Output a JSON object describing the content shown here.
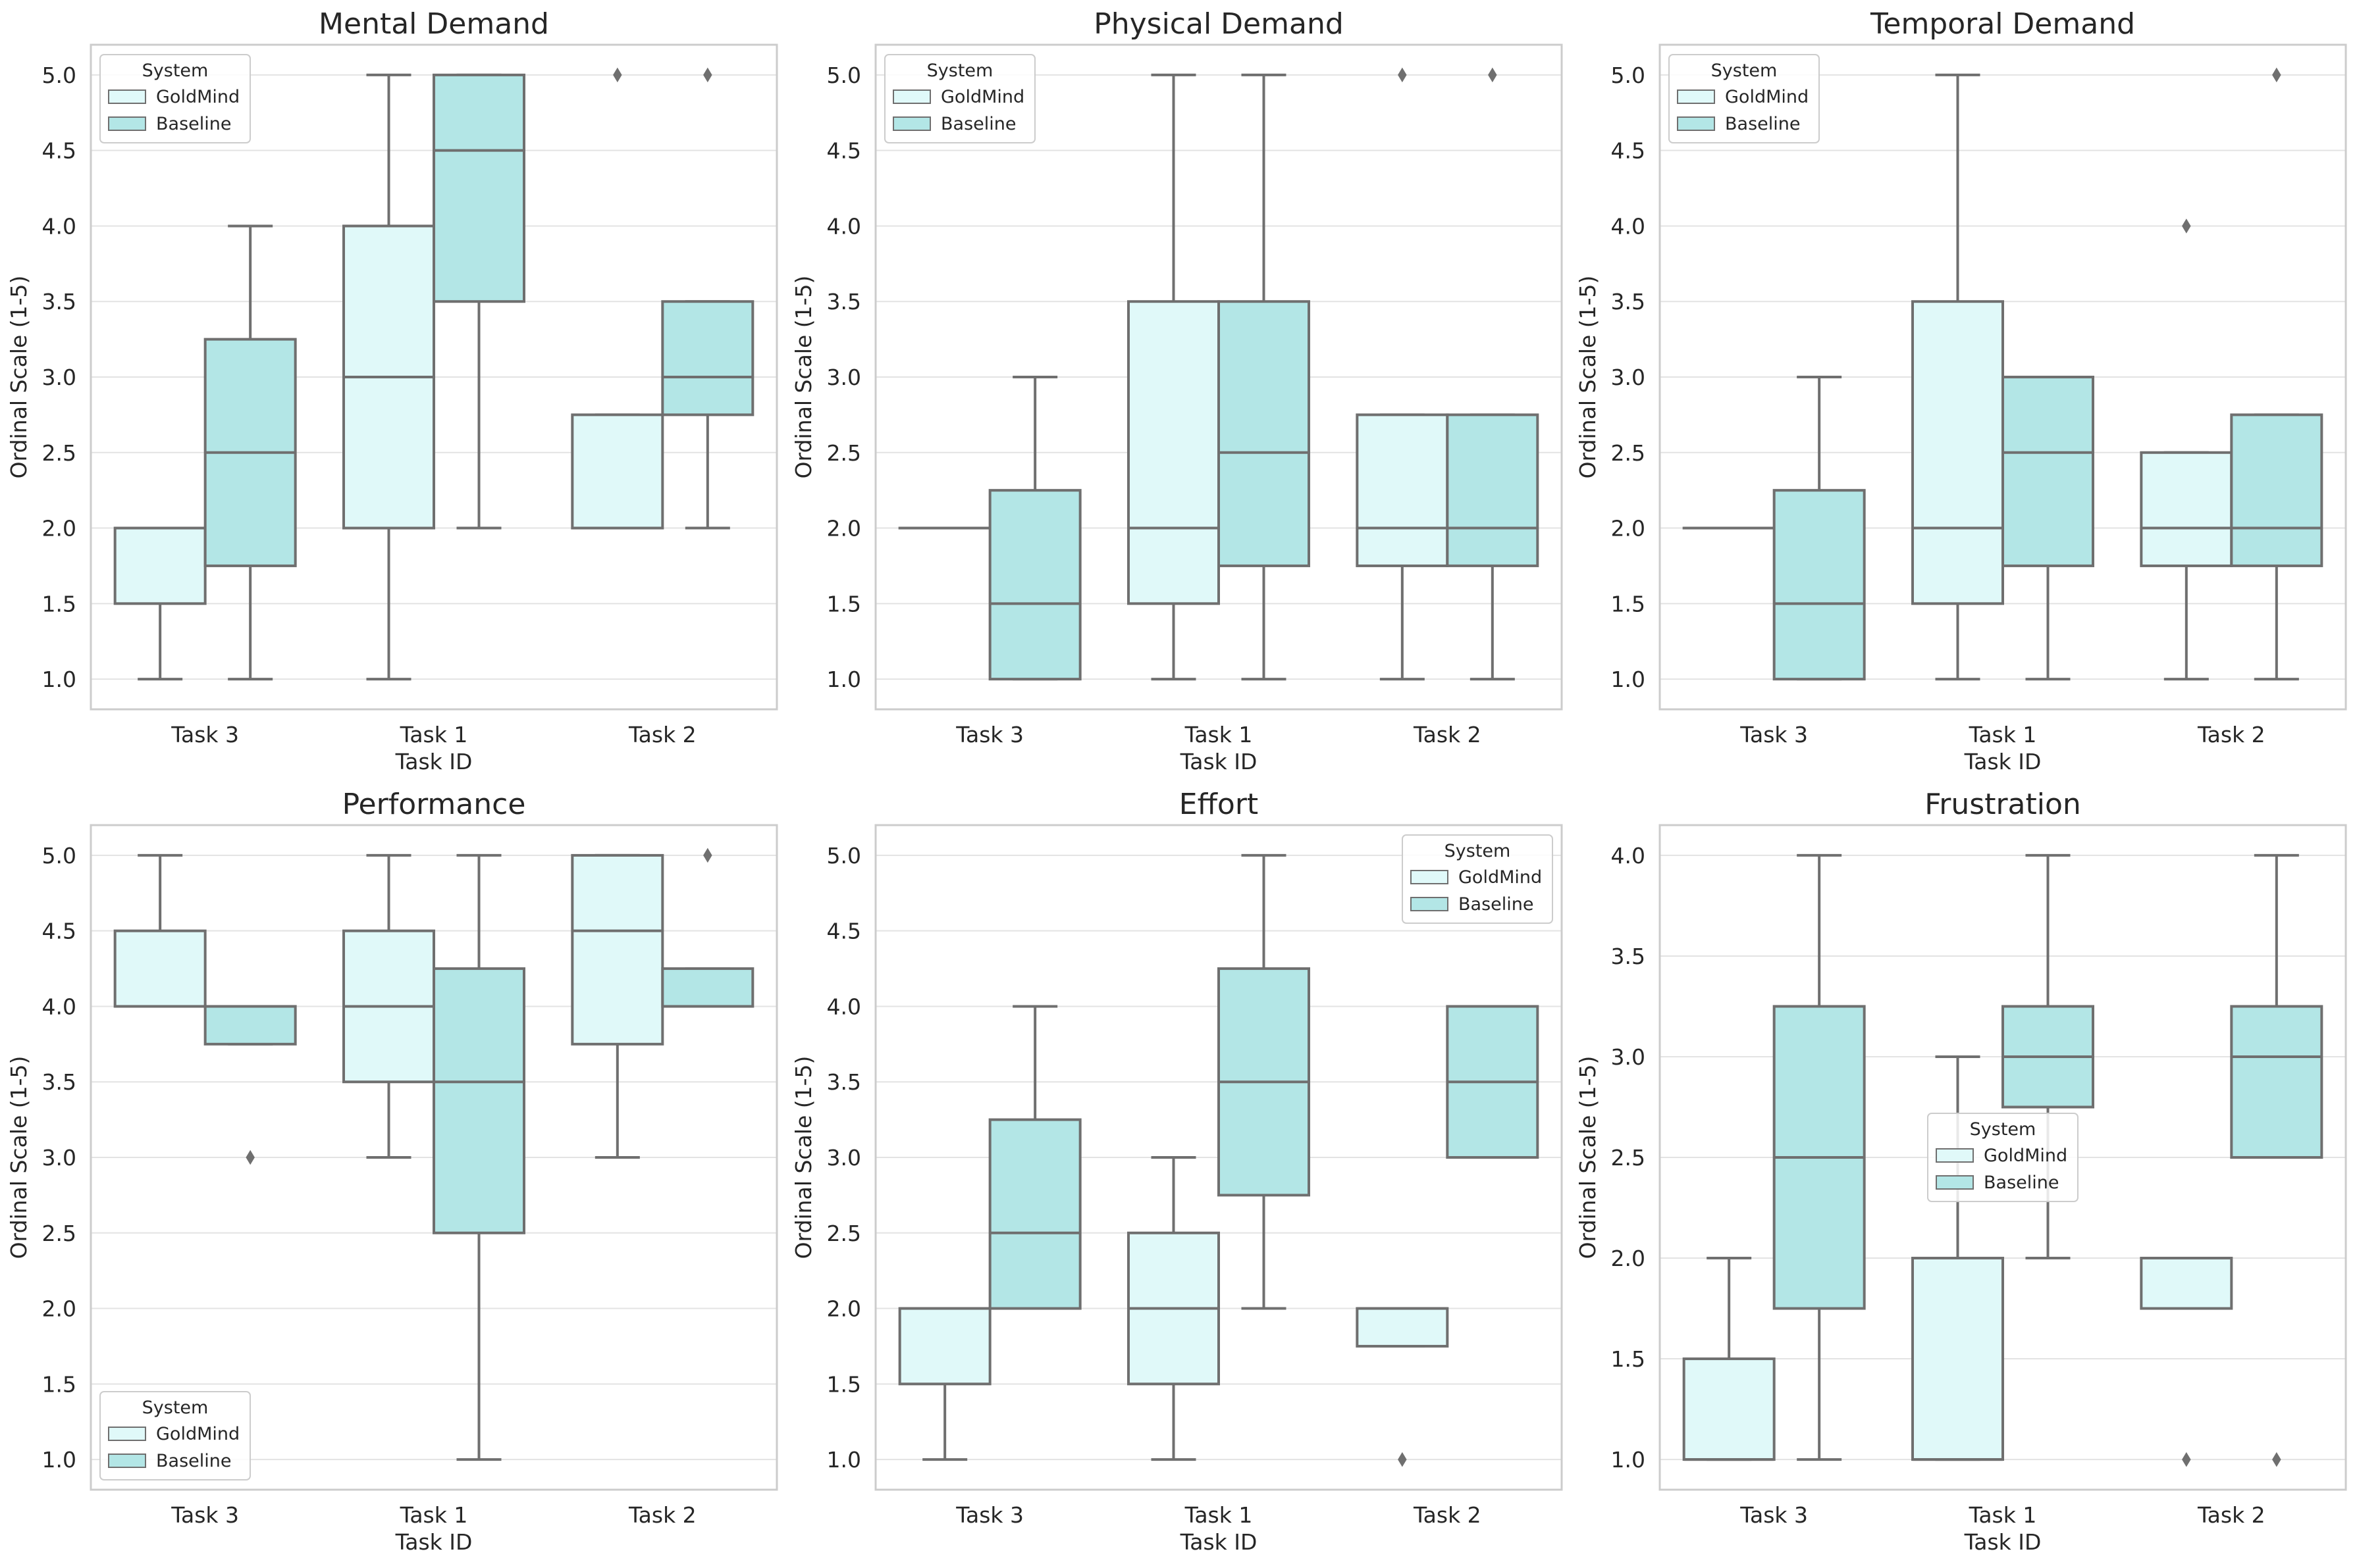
{
  "colors": {
    "goldmind": "#e0f9f9",
    "baseline": "#b3e6e6",
    "line": "#6f6f6f",
    "grid": "#e3e3e3",
    "spine": "#cccccc",
    "text": "#262626",
    "legend_border": "#cccccc"
  },
  "chart_data": [
    {
      "type": "box",
      "title": "Mental Demand",
      "xlabel": "Task ID",
      "ylabel": "Ordinal Scale (1-5)",
      "ylim": [
        0.8,
        5.2
      ],
      "yticks": [
        "1.0",
        "1.5",
        "2.0",
        "2.5",
        "3.0",
        "3.5",
        "4.0",
        "4.5",
        "5.0"
      ],
      "categories": [
        "Task 3",
        "Task 1",
        "Task 2"
      ],
      "legend": {
        "title": "System",
        "entries": [
          "GoldMind",
          "Baseline"
        ],
        "position": "upper-left"
      },
      "series": [
        {
          "name": "GoldMind",
          "boxes": [
            {
              "whislo": 1.0,
              "q1": 1.5,
              "med": 2.0,
              "q3": 2.0,
              "whishi": 2.0,
              "fliers": []
            },
            {
              "whislo": 1.0,
              "q1": 2.0,
              "med": 3.0,
              "q3": 4.0,
              "whishi": 5.0,
              "fliers": []
            },
            {
              "whislo": 2.0,
              "q1": 2.0,
              "med": 2.0,
              "q3": 2.75,
              "whishi": 2.75,
              "fliers": [
                5.0
              ]
            }
          ]
        },
        {
          "name": "Baseline",
          "boxes": [
            {
              "whislo": 1.0,
              "q1": 1.75,
              "med": 2.5,
              "q3": 3.25,
              "whishi": 4.0,
              "fliers": []
            },
            {
              "whislo": 2.0,
              "q1": 3.5,
              "med": 4.5,
              "q3": 5.0,
              "whishi": 5.0,
              "fliers": []
            },
            {
              "whislo": 2.0,
              "q1": 2.75,
              "med": 3.0,
              "q3": 3.5,
              "whishi": 3.5,
              "fliers": [
                5.0
              ]
            }
          ]
        }
      ]
    },
    {
      "type": "box",
      "title": "Physical Demand",
      "xlabel": "Task ID",
      "ylabel": "Ordinal Scale (1-5)",
      "ylim": [
        0.8,
        5.2
      ],
      "yticks": [
        "1.0",
        "1.5",
        "2.0",
        "2.5",
        "3.0",
        "3.5",
        "4.0",
        "4.5",
        "5.0"
      ],
      "categories": [
        "Task 3",
        "Task 1",
        "Task 2"
      ],
      "legend": {
        "title": "System",
        "entries": [
          "GoldMind",
          "Baseline"
        ],
        "position": "upper-left"
      },
      "series": [
        {
          "name": "GoldMind",
          "boxes": [
            {
              "whislo": 2.0,
              "q1": 2.0,
              "med": 2.0,
              "q3": 2.0,
              "whishi": 2.0,
              "fliers": []
            },
            {
              "whislo": 1.0,
              "q1": 1.5,
              "med": 2.0,
              "q3": 3.5,
              "whishi": 5.0,
              "fliers": []
            },
            {
              "whislo": 1.0,
              "q1": 1.75,
              "med": 2.0,
              "q3": 2.75,
              "whishi": 2.75,
              "fliers": [
                5.0
              ]
            }
          ]
        },
        {
          "name": "Baseline",
          "boxes": [
            {
              "whislo": 1.0,
              "q1": 1.0,
              "med": 1.5,
              "q3": 2.25,
              "whishi": 3.0,
              "fliers": []
            },
            {
              "whislo": 1.0,
              "q1": 1.75,
              "med": 2.5,
              "q3": 3.5,
              "whishi": 5.0,
              "fliers": []
            },
            {
              "whislo": 1.0,
              "q1": 1.75,
              "med": 2.0,
              "q3": 2.75,
              "whishi": 2.75,
              "fliers": [
                5.0
              ]
            }
          ]
        }
      ]
    },
    {
      "type": "box",
      "title": "Temporal Demand",
      "xlabel": "Task ID",
      "ylabel": "Ordinal Scale (1-5)",
      "ylim": [
        0.8,
        5.2
      ],
      "yticks": [
        "1.0",
        "1.5",
        "2.0",
        "2.5",
        "3.0",
        "3.5",
        "4.0",
        "4.5",
        "5.0"
      ],
      "categories": [
        "Task 3",
        "Task 1",
        "Task 2"
      ],
      "legend": {
        "title": "System",
        "entries": [
          "GoldMind",
          "Baseline"
        ],
        "position": "upper-left"
      },
      "series": [
        {
          "name": "GoldMind",
          "boxes": [
            {
              "whislo": 2.0,
              "q1": 2.0,
              "med": 2.0,
              "q3": 2.0,
              "whishi": 2.0,
              "fliers": []
            },
            {
              "whislo": 1.0,
              "q1": 1.5,
              "med": 2.0,
              "q3": 3.5,
              "whishi": 5.0,
              "fliers": []
            },
            {
              "whislo": 1.0,
              "q1": 1.75,
              "med": 2.0,
              "q3": 2.5,
              "whishi": 2.5,
              "fliers": [
                4.0
              ]
            }
          ]
        },
        {
          "name": "Baseline",
          "boxes": [
            {
              "whislo": 1.0,
              "q1": 1.0,
              "med": 1.5,
              "q3": 2.25,
              "whishi": 3.0,
              "fliers": []
            },
            {
              "whislo": 1.0,
              "q1": 1.75,
              "med": 2.5,
              "q3": 3.0,
              "whishi": 3.0,
              "fliers": []
            },
            {
              "whislo": 1.0,
              "q1": 1.75,
              "med": 2.0,
              "q3": 2.75,
              "whishi": 2.75,
              "fliers": [
                5.0
              ]
            }
          ]
        }
      ]
    },
    {
      "type": "box",
      "title": "Performance",
      "xlabel": "Task ID",
      "ylabel": "Ordinal Scale (1-5)",
      "ylim": [
        0.8,
        5.2
      ],
      "yticks": [
        "1.0",
        "1.5",
        "2.0",
        "2.5",
        "3.0",
        "3.5",
        "4.0",
        "4.5",
        "5.0"
      ],
      "categories": [
        "Task 3",
        "Task 1",
        "Task 2"
      ],
      "legend": {
        "title": "System",
        "entries": [
          "GoldMind",
          "Baseline"
        ],
        "position": "lower-left"
      },
      "series": [
        {
          "name": "GoldMind",
          "boxes": [
            {
              "whislo": 4.0,
              "q1": 4.0,
              "med": 4.0,
              "q3": 4.5,
              "whishi": 5.0,
              "fliers": []
            },
            {
              "whislo": 3.0,
              "q1": 3.5,
              "med": 4.0,
              "q3": 4.5,
              "whishi": 5.0,
              "fliers": []
            },
            {
              "whislo": 3.0,
              "q1": 3.75,
              "med": 4.5,
              "q3": 5.0,
              "whishi": 5.0,
              "fliers": []
            }
          ]
        },
        {
          "name": "Baseline",
          "boxes": [
            {
              "whislo": 3.75,
              "q1": 3.75,
              "med": 4.0,
              "q3": 4.0,
              "whishi": 4.0,
              "fliers": [
                3.0
              ]
            },
            {
              "whislo": 1.0,
              "q1": 2.5,
              "med": 3.5,
              "q3": 4.25,
              "whishi": 5.0,
              "fliers": []
            },
            {
              "whislo": 4.0,
              "q1": 4.0,
              "med": 4.0,
              "q3": 4.25,
              "whishi": 4.25,
              "fliers": [
                5.0
              ]
            }
          ]
        }
      ]
    },
    {
      "type": "box",
      "title": "Effort",
      "xlabel": "Task ID",
      "ylabel": "Ordinal Scale (1-5)",
      "ylim": [
        0.8,
        5.2
      ],
      "yticks": [
        "1.0",
        "1.5",
        "2.0",
        "2.5",
        "3.0",
        "3.5",
        "4.0",
        "4.5",
        "5.0"
      ],
      "categories": [
        "Task 3",
        "Task 1",
        "Task 2"
      ],
      "legend": {
        "title": "System",
        "entries": [
          "GoldMind",
          "Baseline"
        ],
        "position": "upper-right"
      },
      "series": [
        {
          "name": "GoldMind",
          "boxes": [
            {
              "whislo": 1.0,
              "q1": 1.5,
              "med": 2.0,
              "q3": 2.0,
              "whishi": 2.0,
              "fliers": []
            },
            {
              "whislo": 1.0,
              "q1": 1.5,
              "med": 2.0,
              "q3": 2.5,
              "whishi": 3.0,
              "fliers": []
            },
            {
              "whislo": 1.75,
              "q1": 1.75,
              "med": 2.0,
              "q3": 2.0,
              "whishi": 2.0,
              "fliers": [
                1.0
              ]
            }
          ]
        },
        {
          "name": "Baseline",
          "boxes": [
            {
              "whislo": 2.0,
              "q1": 2.0,
              "med": 2.5,
              "q3": 3.25,
              "whishi": 4.0,
              "fliers": []
            },
            {
              "whislo": 2.0,
              "q1": 2.75,
              "med": 3.5,
              "q3": 4.25,
              "whishi": 5.0,
              "fliers": []
            },
            {
              "whislo": 3.0,
              "q1": 3.0,
              "med": 3.5,
              "q3": 4.0,
              "whishi": 4.0,
              "fliers": []
            }
          ]
        }
      ]
    },
    {
      "type": "box",
      "title": "Frustration",
      "xlabel": "Task ID",
      "ylabel": "Ordinal Scale (1-5)",
      "ylim": [
        0.85,
        4.15
      ],
      "yticks": [
        "1.0",
        "1.5",
        "2.0",
        "2.5",
        "3.0",
        "3.5",
        "4.0"
      ],
      "categories": [
        "Task 3",
        "Task 1",
        "Task 2"
      ],
      "legend": {
        "title": "System",
        "entries": [
          "GoldMind",
          "Baseline"
        ],
        "position": "center"
      },
      "series": [
        {
          "name": "GoldMind",
          "boxes": [
            {
              "whislo": 1.0,
              "q1": 1.0,
              "med": 1.0,
              "q3": 1.5,
              "whishi": 2.0,
              "fliers": []
            },
            {
              "whislo": 1.0,
              "q1": 1.0,
              "med": 1.0,
              "q3": 2.0,
              "whishi": 3.0,
              "fliers": []
            },
            {
              "whislo": 1.75,
              "q1": 1.75,
              "med": 2.0,
              "q3": 2.0,
              "whishi": 2.0,
              "fliers": [
                1.0
              ]
            }
          ]
        },
        {
          "name": "Baseline",
          "boxes": [
            {
              "whislo": 1.0,
              "q1": 1.75,
              "med": 2.5,
              "q3": 3.25,
              "whishi": 4.0,
              "fliers": []
            },
            {
              "whislo": 2.0,
              "q1": 2.75,
              "med": 3.0,
              "q3": 3.25,
              "whishi": 4.0,
              "fliers": []
            },
            {
              "whislo": 2.5,
              "q1": 2.5,
              "med": 3.0,
              "q3": 3.25,
              "whishi": 4.0,
              "fliers": [
                1.0
              ]
            }
          ]
        }
      ]
    }
  ]
}
